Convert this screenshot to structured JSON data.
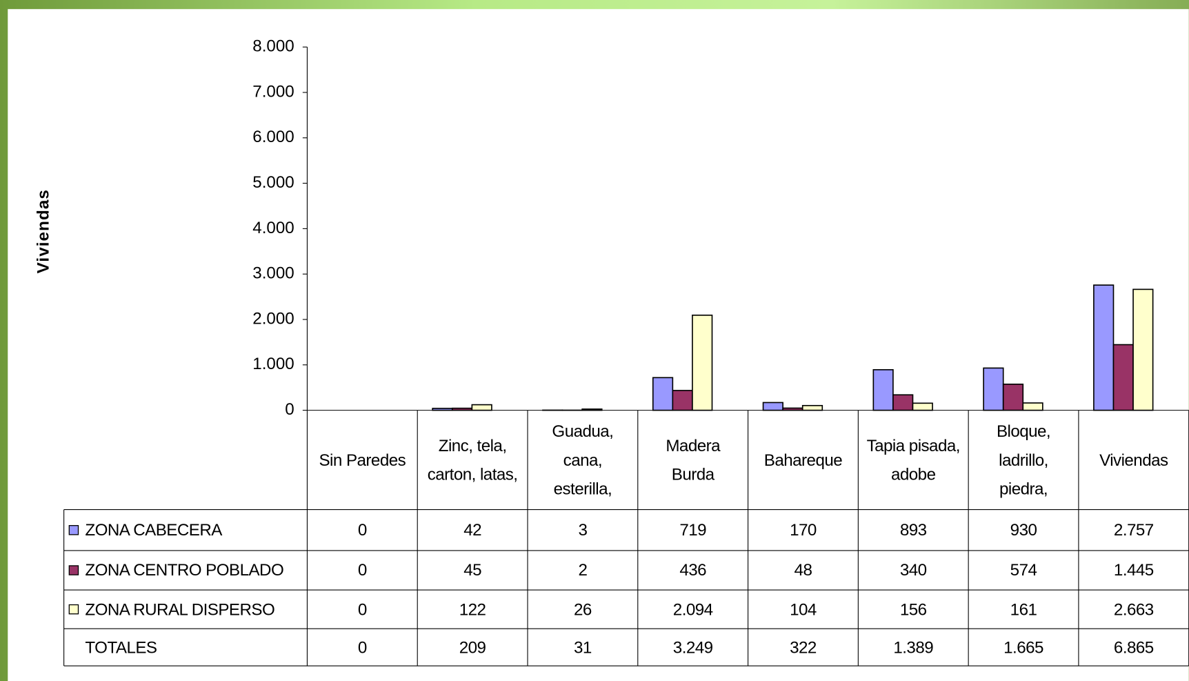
{
  "chart_data": {
    "type": "bar",
    "y_label": "Viviendas",
    "categories": [
      "Sin Paredes",
      "Zinc, tela, carton, latas,",
      "Guadua, cana, esterilla,",
      "Madera Burda",
      "Bahareque",
      "Tapia pisada, adobe",
      "Bloque, ladrillo, piedra,",
      "Viviendas"
    ],
    "series": [
      {
        "name": "ZONA CABECERA",
        "color": "#9999ff",
        "values": [
          0,
          42,
          3,
          719,
          170,
          893,
          930,
          2757
        ],
        "value_labels": [
          "0",
          "42",
          "3",
          "719",
          "170",
          "893",
          "930",
          "2.757"
        ]
      },
      {
        "name": "ZONA CENTRO POBLADO",
        "color": "#993366",
        "values": [
          0,
          45,
          2,
          436,
          48,
          340,
          574,
          1445
        ],
        "value_labels": [
          "0",
          "45",
          "2",
          "436",
          "48",
          "340",
          "574",
          "1.445"
        ]
      },
      {
        "name": "ZONA RURAL DISPERSO",
        "color": "#ffffcc",
        "values": [
          0,
          122,
          26,
          2094,
          104,
          156,
          161,
          2663
        ],
        "value_labels": [
          "0",
          "122",
          "26",
          "2.094",
          "104",
          "156",
          "161",
          "2.663"
        ]
      }
    ],
    "totals": {
      "name": "TOTALES",
      "values": [
        0,
        209,
        31,
        3249,
        322,
        1389,
        1665,
        6865
      ],
      "value_labels": [
        "0",
        "209",
        "31",
        "3.249",
        "322",
        "1.389",
        "1.665",
        "6.865"
      ]
    },
    "ylim": [
      0,
      8000
    ],
    "yticks": [
      0,
      {
        "value": 1000,
        "label": "1.000"
      },
      {
        "value": 2000,
        "label": "2.000"
      },
      {
        "value": 3000,
        "label": "3.000"
      },
      {
        "value": 4000,
        "label": "4.000"
      },
      {
        "value": 5000,
        "label": "5.000"
      },
      {
        "value": 6000,
        "label": "6.000"
      },
      {
        "value": 7000,
        "label": "7.000"
      },
      {
        "value": 8000,
        "label": "8.000"
      }
    ],
    "legend": "table"
  }
}
